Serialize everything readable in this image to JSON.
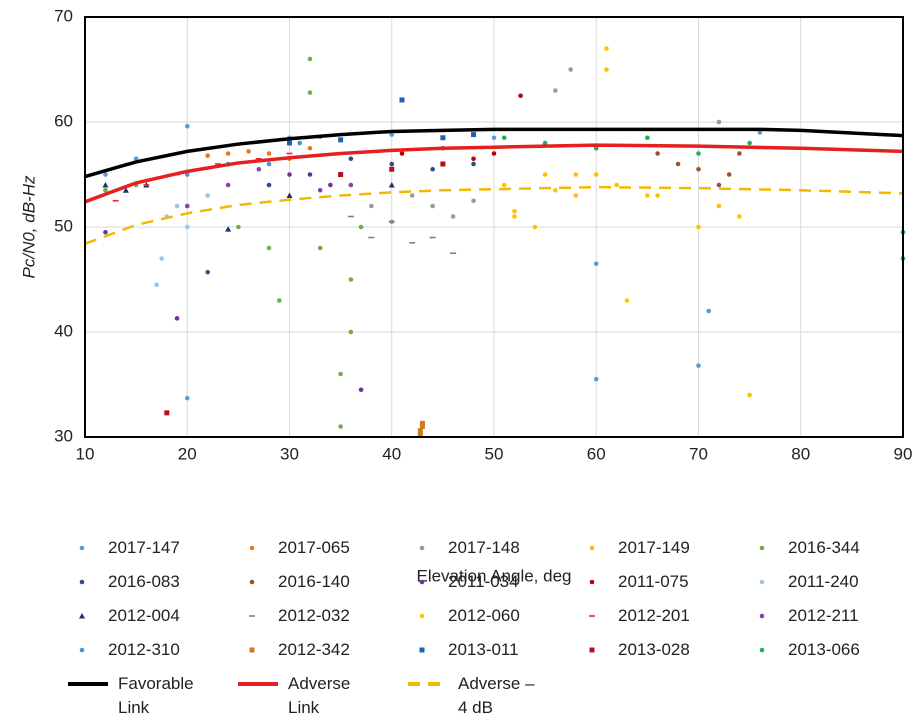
{
  "chart_data": {
    "type": "scatter",
    "xlabel": "Elevation Angle, deg",
    "ylabel": "Pc/N0, dB-Hz",
    "xlim": [
      10,
      90
    ],
    "ylim": [
      30,
      70
    ],
    "xticks": [
      10,
      20,
      30,
      40,
      50,
      60,
      70,
      80,
      90
    ],
    "yticks": [
      30,
      40,
      50,
      60,
      70
    ],
    "grid": true,
    "series": [
      {
        "name": "2017-147",
        "color": "#5b9bd5",
        "marker": "circle",
        "x": [
          12,
          15,
          20,
          30,
          40,
          50,
          60,
          70,
          71,
          20,
          60,
          76
        ],
        "values": [
          55,
          56.5,
          59.6,
          58.5,
          58.8,
          58.5,
          35.5,
          36.8,
          42,
          33.7,
          46.5,
          59
        ]
      },
      {
        "name": "2017-065",
        "color": "#e87722",
        "marker": "circle",
        "x": [
          22,
          24,
          26,
          28,
          30,
          32
        ],
        "values": [
          56.8,
          57,
          57.2,
          57,
          56.5,
          57.5
        ]
      },
      {
        "name": "2017-148",
        "color": "#9a9a9a",
        "marker": "circle",
        "x": [
          38,
          40,
          42,
          44,
          46,
          48,
          56,
          57.5,
          72
        ],
        "values": [
          52,
          50.5,
          53,
          52,
          51,
          52.5,
          63,
          65,
          60
        ]
      },
      {
        "name": "2017-149",
        "color": "#ffc000",
        "marker": "circle",
        "x": [
          51,
          52,
          55,
          58,
          60,
          61,
          61,
          63,
          66,
          70,
          72,
          74,
          75
        ],
        "values": [
          54,
          51.5,
          55,
          53,
          55,
          67,
          65,
          43,
          53,
          50,
          52,
          51,
          34
        ]
      },
      {
        "name": "2016-344",
        "color": "#70ad47",
        "marker": "circle",
        "x": [
          12,
          15,
          20,
          25,
          28,
          29,
          32,
          32,
          33,
          35,
          35,
          36,
          36,
          37
        ],
        "values": [
          53.5,
          54,
          52,
          50,
          48,
          43,
          66,
          62.8,
          48,
          31,
          36,
          40,
          45,
          50
        ]
      },
      {
        "name": "2016-083",
        "color": "#2e4a8c",
        "marker": "circle",
        "x": [
          28,
          32,
          36,
          40,
          44,
          48
        ],
        "values": [
          54,
          55,
          56.5,
          56,
          55.5,
          56
        ]
      },
      {
        "name": "2016-140",
        "color": "#a0522d",
        "marker": "circle",
        "x": [
          66,
          68,
          70,
          72,
          73,
          74
        ],
        "values": [
          57,
          56,
          55.5,
          54,
          55,
          57
        ]
      },
      {
        "name": "2011-034",
        "color": "#7030a0",
        "marker": "circle",
        "x": [
          12,
          19,
          22,
          37,
          30,
          34
        ],
        "values": [
          49.5,
          41.3,
          45.7,
          34.5,
          55,
          54
        ]
      },
      {
        "name": "2011-075",
        "color": "#c00000",
        "marker": "circle",
        "x": [
          41,
          45,
          48,
          50,
          52.6,
          55
        ],
        "values": [
          57,
          57.5,
          56.5,
          57,
          62.5,
          57.8
        ]
      },
      {
        "name": "2011-240",
        "color": "#9dc3e6",
        "marker": "circle",
        "x": [
          17,
          17.5,
          18,
          19,
          20,
          22
        ],
        "values": [
          44.5,
          47,
          51,
          52,
          50,
          53
        ]
      },
      {
        "name": "2012-004",
        "color": "#1f2f6c",
        "marker": "triangle",
        "x": [
          12,
          14,
          16,
          24,
          30,
          40
        ],
        "values": [
          54,
          53.5,
          54,
          49.8,
          53,
          54
        ]
      },
      {
        "name": "2012-032",
        "color": "#808080",
        "marker": "dash",
        "x": [
          36,
          38,
          40,
          42,
          44,
          46
        ],
        "values": [
          51,
          49,
          50.5,
          48.5,
          49,
          47.5
        ]
      },
      {
        "name": "2012-060",
        "color": "#ffc000",
        "marker": "circle",
        "x": [
          52,
          54,
          56,
          58,
          62,
          65
        ],
        "values": [
          51,
          50,
          53.5,
          55,
          54,
          53
        ]
      },
      {
        "name": "2012-201",
        "color": "#e03030",
        "marker": "dash",
        "x": [
          13,
          16,
          19,
          23,
          27,
          30
        ],
        "values": [
          52.5,
          54,
          55,
          56,
          56.5,
          57
        ]
      },
      {
        "name": "2012-211",
        "color": "#8a3fb0",
        "marker": "circle",
        "x": [
          20,
          24,
          27,
          33,
          36
        ],
        "values": [
          52,
          54,
          55.5,
          53.5,
          54
        ]
      },
      {
        "name": "2012-310",
        "color": "#4a90d9",
        "marker": "circle",
        "x": [
          20,
          24,
          28,
          31,
          33
        ],
        "values": [
          55,
          56,
          56,
          58,
          58.6
        ]
      },
      {
        "name": "2012-342",
        "color": "#d07a20",
        "marker": "square",
        "x": [
          42.8,
          42.8,
          43,
          43
        ],
        "values": [
          30.2,
          30.6,
          31,
          31.3
        ]
      },
      {
        "name": "2013-011",
        "color": "#2060b0",
        "marker": "square",
        "x": [
          30,
          35,
          41,
          45,
          48
        ],
        "values": [
          58,
          58.3,
          62.1,
          58.5,
          58.8
        ]
      },
      {
        "name": "2013-028",
        "color": "#b01020",
        "marker": "square",
        "x": [
          18,
          35,
          40,
          45
        ],
        "values": [
          32.3,
          55,
          55.5,
          56
        ]
      },
      {
        "name": "2013-066",
        "color": "#20b050",
        "marker": "circle",
        "x": [
          51,
          55,
          60,
          65,
          70,
          75,
          90,
          90
        ],
        "values": [
          58.5,
          58,
          57.5,
          58.5,
          57,
          58,
          49.5,
          47
        ]
      },
      {
        "name": "Favorable Link",
        "color": "#000000",
        "line_style": "solid",
        "x": [
          10,
          15,
          20,
          25,
          30,
          35,
          40,
          45,
          50,
          60,
          70,
          76,
          80,
          90
        ],
        "values": [
          54.8,
          56.2,
          57.2,
          57.9,
          58.4,
          58.8,
          59.1,
          59.2,
          59.3,
          59.3,
          59.3,
          59.3,
          59.2,
          58.7
        ]
      },
      {
        "name": "Adverse Link",
        "color": "#e52020",
        "line_style": "solid",
        "x": [
          10,
          15,
          20,
          25,
          30,
          35,
          40,
          45,
          50,
          60,
          70,
          80,
          90
        ],
        "values": [
          52.4,
          54.2,
          55.3,
          56.1,
          56.6,
          57,
          57.3,
          57.5,
          57.6,
          57.8,
          57.7,
          57.5,
          57.2
        ]
      },
      {
        "name": "Adverse – 4 dB",
        "color": "#f5b800",
        "line_style": "dashed",
        "x": [
          10,
          15,
          20,
          25,
          30,
          35,
          40,
          45,
          50,
          60,
          70,
          80,
          90
        ],
        "values": [
          48.4,
          50.2,
          51.3,
          52.1,
          52.6,
          53,
          53.3,
          53.5,
          53.6,
          53.8,
          53.7,
          53.5,
          53.2
        ]
      }
    ]
  }
}
